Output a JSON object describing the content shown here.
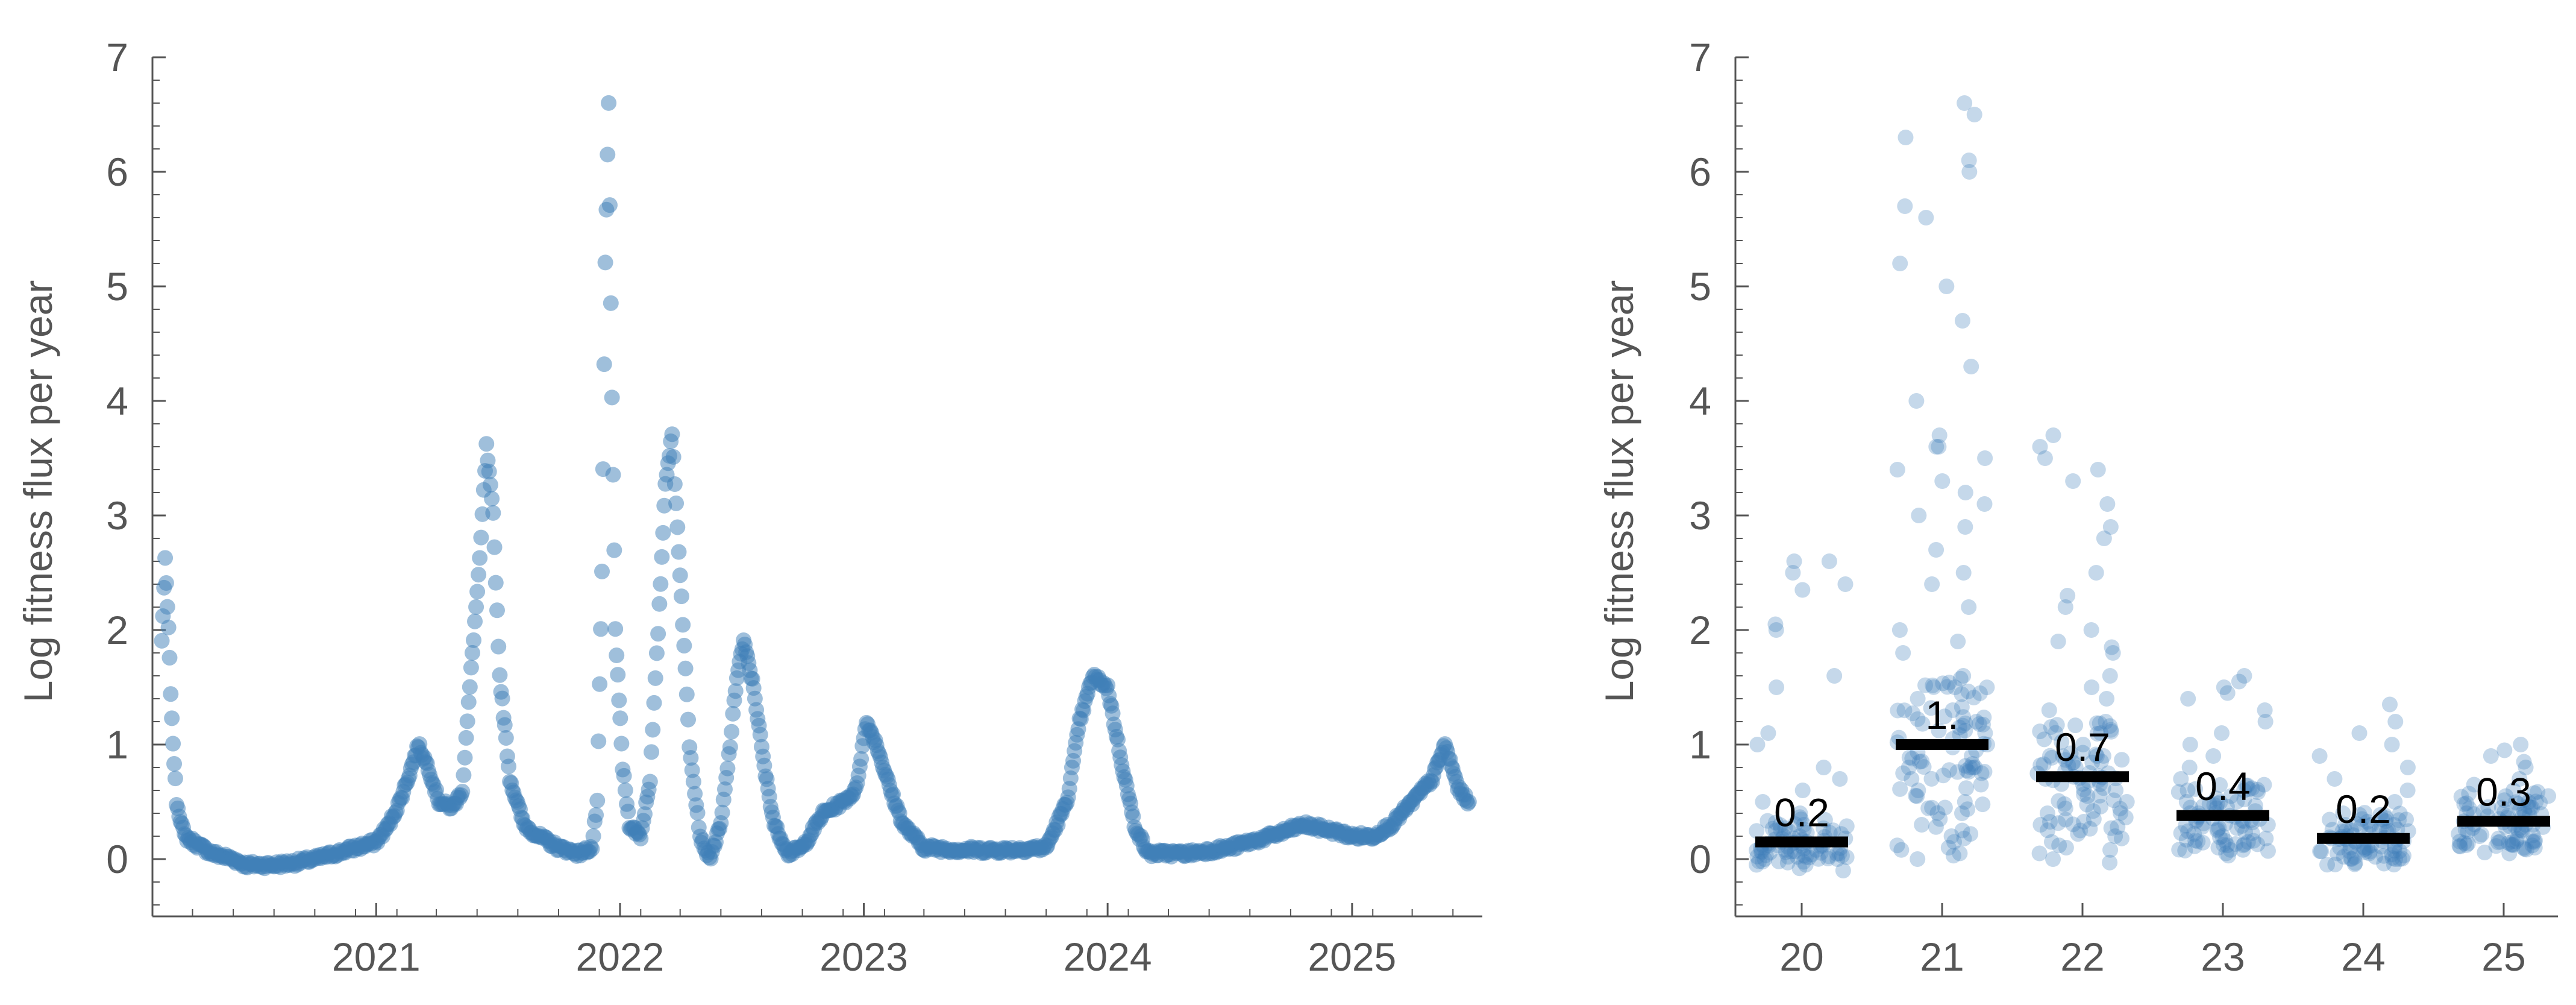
{
  "colors": {
    "point": "#3f7fb8",
    "axis": "#555555",
    "median_bar": "#000000",
    "background": "#ffffff"
  },
  "chart_data": [
    {
      "type": "scatter",
      "title": "",
      "xlabel": "",
      "ylabel": "Log fitness flux per year",
      "x_type": "date",
      "xlim": [
        "2020-02-01",
        "2025-07-15"
      ],
      "ylim": [
        -0.5,
        7
      ],
      "y_ticks": [
        "0",
        "1",
        "2",
        "3",
        "4",
        "5",
        "6",
        "7"
      ],
      "x_ticks": [
        "2021",
        "2022",
        "2023",
        "2024",
        "2025"
      ],
      "grid": false,
      "marker_opacity": 0.5,
      "series": [
        {
          "points": [
            [
              "2020-02-15",
              1.9
            ],
            [
              "2020-02-20",
              2.6
            ],
            [
              "2020-02-25",
              2.0
            ],
            [
              "2020-03-01",
              1.2
            ],
            [
              "2020-03-08",
              0.5
            ],
            [
              "2020-03-20",
              0.2
            ],
            [
              "2020-04-10",
              0.12
            ],
            [
              "2020-05-01",
              0.05
            ],
            [
              "2020-06-01",
              0.0
            ],
            [
              "2020-06-20",
              -0.05
            ],
            [
              "2020-08-01",
              -0.05
            ],
            [
              "2020-09-01",
              -0.03
            ],
            [
              "2020-10-01",
              0.0
            ],
            [
              "2020-11-01",
              0.05
            ],
            [
              "2020-12-01",
              0.1
            ],
            [
              "2021-01-01",
              0.15
            ],
            [
              "2021-01-20",
              0.3
            ],
            [
              "2021-02-05",
              0.5
            ],
            [
              "2021-02-20",
              0.75
            ],
            [
              "2021-03-05",
              1.0
            ],
            [
              "2021-03-20",
              0.8
            ],
            [
              "2021-04-05",
              0.5
            ],
            [
              "2021-04-25",
              0.45
            ],
            [
              "2021-05-10",
              0.6
            ],
            [
              "2021-05-25",
              1.8
            ],
            [
              "2021-06-05",
              2.6
            ],
            [
              "2021-06-15",
              3.6
            ],
            [
              "2021-06-25",
              3.0
            ],
            [
              "2021-07-05",
              1.6
            ],
            [
              "2021-07-20",
              0.7
            ],
            [
              "2021-08-10",
              0.3
            ],
            [
              "2021-09-01",
              0.2
            ],
            [
              "2021-10-01",
              0.1
            ],
            [
              "2021-11-01",
              0.05
            ],
            [
              "2021-11-20",
              0.1
            ],
            [
              "2021-11-28",
              0.5
            ],
            [
              "2021-12-05",
              2.5
            ],
            [
              "2021-12-10",
              5.2
            ],
            [
              "2021-12-15",
              6.6
            ],
            [
              "2021-12-20",
              4.0
            ],
            [
              "2021-12-25",
              2.0
            ],
            [
              "2022-01-05",
              0.8
            ],
            [
              "2022-01-15",
              0.3
            ],
            [
              "2022-02-01",
              0.2
            ],
            [
              "2022-02-15",
              0.7
            ],
            [
              "2022-03-01",
              2.2
            ],
            [
              "2022-03-10",
              3.3
            ],
            [
              "2022-03-20",
              3.7
            ],
            [
              "2022-04-01",
              2.5
            ],
            [
              "2022-04-15",
              1.0
            ],
            [
              "2022-05-01",
              0.2
            ],
            [
              "2022-05-15",
              0.0
            ],
            [
              "2022-06-01",
              0.3
            ],
            [
              "2022-06-15",
              1.0
            ],
            [
              "2022-06-25",
              1.6
            ],
            [
              "2022-07-05",
              1.9
            ],
            [
              "2022-07-20",
              1.5
            ],
            [
              "2022-08-05",
              0.8
            ],
            [
              "2022-08-20",
              0.3
            ],
            [
              "2022-09-10",
              0.05
            ],
            [
              "2022-10-01",
              0.1
            ],
            [
              "2022-11-01",
              0.4
            ],
            [
              "2022-12-01",
              0.5
            ],
            [
              "2022-12-20",
              0.6
            ],
            [
              "2023-01-05",
              1.2
            ],
            [
              "2023-01-20",
              1.0
            ],
            [
              "2023-02-10",
              0.6
            ],
            [
              "2023-03-01",
              0.3
            ],
            [
              "2023-04-01",
              0.1
            ],
            [
              "2023-06-01",
              0.08
            ],
            [
              "2023-08-01",
              0.08
            ],
            [
              "2023-10-01",
              0.1
            ],
            [
              "2023-11-01",
              0.5
            ],
            [
              "2023-11-20",
              1.2
            ],
            [
              "2023-12-10",
              1.6
            ],
            [
              "2024-01-01",
              1.5
            ],
            [
              "2024-01-20",
              0.9
            ],
            [
              "2024-02-10",
              0.3
            ],
            [
              "2024-03-01",
              0.05
            ],
            [
              "2024-05-01",
              0.05
            ],
            [
              "2024-07-01",
              0.1
            ],
            [
              "2024-09-01",
              0.2
            ],
            [
              "2024-10-20",
              0.3
            ],
            [
              "2024-12-01",
              0.25
            ],
            [
              "2025-01-01",
              0.2
            ],
            [
              "2025-02-01",
              0.2
            ],
            [
              "2025-03-01",
              0.3
            ],
            [
              "2025-04-01",
              0.5
            ],
            [
              "2025-05-01",
              0.7
            ],
            [
              "2025-05-20",
              1.0
            ],
            [
              "2025-06-10",
              0.6
            ],
            [
              "2025-06-25",
              0.5
            ]
          ]
        }
      ]
    },
    {
      "type": "scatter",
      "title": "",
      "xlabel": "",
      "ylabel": "Log fitness flux per year",
      "categories": [
        "20",
        "21",
        "22",
        "23",
        "24",
        "25"
      ],
      "ylim": [
        -0.5,
        7
      ],
      "y_ticks": [
        "0",
        "1",
        "2",
        "3",
        "4",
        "5",
        "6",
        "7"
      ],
      "grid": false,
      "marker_opacity": 0.3,
      "medians": [
        0.15,
        1.0,
        0.72,
        0.38,
        0.18,
        0.33
      ],
      "median_labels": [
        "0.2",
        "1.",
        "0.7",
        "0.4",
        "0.2",
        "0.3"
      ],
      "distributions": [
        [
          2.6,
          2.4,
          2.5,
          2.6,
          2.35,
          2.0,
          2.05,
          1.6,
          1.5,
          1.1,
          1.0,
          0.8,
          0.7,
          0.6,
          0.5,
          0.4,
          0.3,
          0.25,
          0.2,
          0.15,
          0.12,
          0.1,
          0.08,
          0.05,
          0.03,
          0.0,
          -0.03,
          -0.05,
          -0.08,
          -0.1,
          0.02,
          0.06,
          0.1,
          0.14,
          0.18,
          0.22,
          0.0,
          -0.02,
          0.04,
          0.09
        ],
        [
          6.6,
          6.5,
          6.3,
          6.1,
          6.0,
          5.7,
          5.6,
          5.2,
          5.0,
          4.7,
          4.3,
          4.0,
          3.7,
          3.6,
          3.6,
          3.5,
          3.4,
          3.3,
          3.2,
          3.1,
          3.0,
          2.9,
          2.7,
          2.5,
          2.4,
          2.2,
          2.0,
          1.9,
          1.8,
          1.6,
          1.5,
          1.4,
          1.2,
          1.1,
          1.0,
          0.9,
          0.8,
          0.7,
          0.6,
          0.5,
          0.4,
          0.35,
          0.3,
          0.25,
          0.2,
          0.15,
          0.1,
          0.08,
          0.05,
          0.03,
          0.0,
          0.12,
          0.18,
          0.22,
          0.28,
          0.45,
          0.55,
          0.65,
          0.75,
          0.85,
          0.95,
          1.05,
          1.3
        ],
        [
          3.7,
          3.6,
          3.5,
          3.4,
          3.3,
          3.1,
          2.9,
          2.8,
          2.5,
          2.3,
          2.2,
          2.0,
          1.9,
          1.85,
          1.8,
          1.6,
          1.5,
          1.4,
          1.3,
          1.2,
          1.1,
          1.0,
          0.9,
          0.8,
          0.7,
          0.6,
          0.5,
          0.4,
          0.35,
          0.3,
          0.25,
          0.2,
          0.15,
          0.1,
          0.05,
          0.0,
          -0.03,
          0.08,
          0.12,
          0.18,
          0.22,
          0.28,
          0.42,
          0.48,
          0.55,
          0.62,
          0.68,
          0.75,
          0.82
        ],
        [
          1.6,
          1.55,
          1.5,
          1.45,
          1.4,
          1.3,
          1.2,
          1.1,
          1.0,
          0.9,
          0.8,
          0.7,
          0.6,
          0.5,
          0.45,
          0.4,
          0.35,
          0.3,
          0.25,
          0.2,
          0.15,
          0.1,
          0.08,
          0.05,
          0.03,
          0.12,
          0.18,
          0.22,
          0.28,
          0.32,
          0.38,
          0.42,
          0.48,
          0.55
        ],
        [
          1.35,
          1.2,
          1.1,
          1.0,
          0.9,
          0.8,
          0.7,
          0.6,
          0.5,
          0.4,
          0.35,
          0.3,
          0.25,
          0.2,
          0.15,
          0.12,
          0.1,
          0.08,
          0.05,
          0.03,
          0.0,
          0.02,
          0.06,
          0.1,
          0.14,
          0.18,
          0.22,
          0.26,
          0.3,
          0.05,
          0.07,
          0.09
        ],
        [
          1.0,
          0.95,
          0.9,
          0.85,
          0.8,
          0.7,
          0.65,
          0.6,
          0.55,
          0.5,
          0.45,
          0.4,
          0.38,
          0.35,
          0.32,
          0.3,
          0.28,
          0.25,
          0.22,
          0.2,
          0.18,
          0.15,
          0.12,
          0.1,
          0.24,
          0.27,
          0.33,
          0.36,
          0.42,
          0.48
        ]
      ]
    }
  ]
}
